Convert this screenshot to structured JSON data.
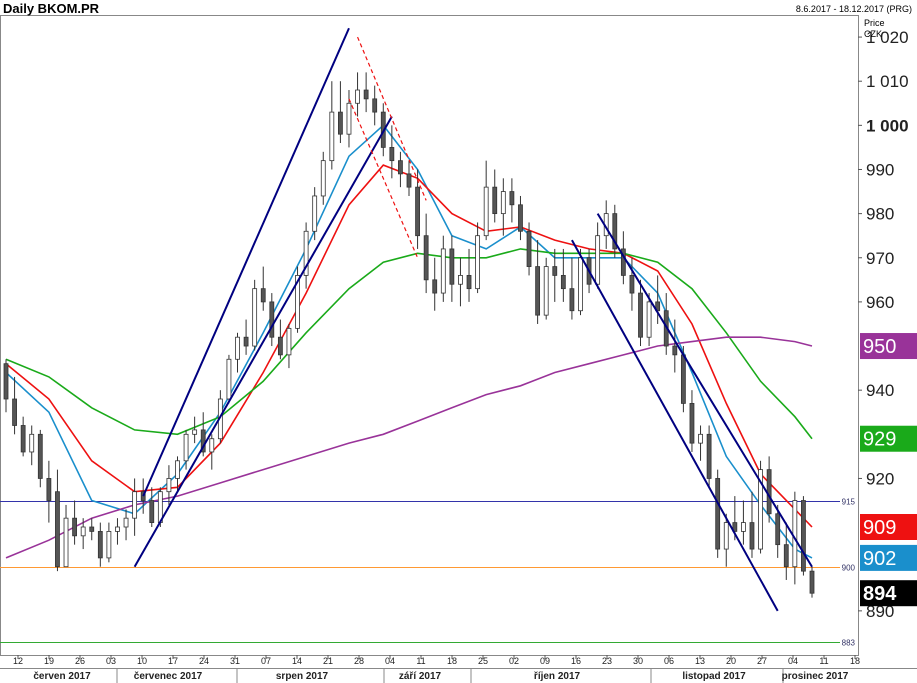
{
  "header": {
    "title": "Daily BKOM.PR",
    "range": "8.6.2017 - 18.12.2017 (PRG)",
    "price_label": "Price",
    "currency_label": "CZK"
  },
  "chart_data": {
    "type": "candlestick",
    "ylim": [
      880,
      1025
    ],
    "y_ticks": [
      {
        "value": 1020,
        "label": "1 020",
        "bold": false
      },
      {
        "value": 1010,
        "label": "1 010",
        "bold": false
      },
      {
        "value": 1000,
        "label": "1 000",
        "bold": true
      },
      {
        "value": 990,
        "label": "990",
        "bold": false
      },
      {
        "value": 980,
        "label": "980",
        "bold": false
      },
      {
        "value": 970,
        "label": "970",
        "bold": false
      },
      {
        "value": 960,
        "label": "960",
        "bold": false
      },
      {
        "value": 940,
        "label": "940",
        "bold": false
      },
      {
        "value": 920,
        "label": "920",
        "bold": false
      },
      {
        "value": 890,
        "label": "890",
        "bold": false
      }
    ],
    "x_ticks": [
      "12",
      "19",
      "26",
      "03",
      "10",
      "17",
      "24",
      "31",
      "07",
      "14",
      "21",
      "28",
      "04",
      "11",
      "18",
      "25",
      "02",
      "09",
      "16",
      "23",
      "30",
      "06",
      "13",
      "20",
      "27",
      "04",
      "11",
      "18"
    ],
    "months": [
      "červen 2017",
      "červenec 2017",
      "srpen 2017",
      "září 2017",
      "říjen 2017",
      "listopad 2017",
      "prosinec 2017"
    ],
    "horizontal_lines": [
      {
        "value": 915,
        "label": "915",
        "color": "#3333aa"
      },
      {
        "value": 900,
        "label": "900",
        "color": "#ff9933"
      },
      {
        "value": 883,
        "label": "883",
        "color": "#33aa33"
      }
    ],
    "price_tags": [
      {
        "value": 950,
        "label": "950",
        "color": "#993399"
      },
      {
        "value": 929,
        "label": "929",
        "color": "#1aaa1a"
      },
      {
        "value": 909,
        "label": "909",
        "color": "#ee1111"
      },
      {
        "value": 902,
        "label": "902",
        "color": "#1a8fcc"
      },
      {
        "value": 894,
        "label": "894",
        "color": "#000000"
      }
    ],
    "candles": [
      [
        0,
        946,
        947,
        935,
        938
      ],
      [
        1,
        938,
        943,
        930,
        932
      ],
      [
        2,
        932,
        934,
        925,
        926
      ],
      [
        3,
        926,
        932,
        923,
        930
      ],
      [
        4,
        930,
        931,
        918,
        920
      ],
      [
        5,
        920,
        924,
        910,
        915
      ],
      [
        6,
        917,
        922,
        899,
        900
      ],
      [
        7,
        900,
        914,
        900,
        911
      ],
      [
        8,
        911,
        915,
        905,
        907
      ],
      [
        9,
        907,
        911,
        904,
        909
      ],
      [
        10,
        909,
        911,
        906,
        908
      ],
      [
        11,
        908,
        910,
        900,
        902
      ],
      [
        12,
        902,
        910,
        901,
        908
      ],
      [
        13,
        908,
        911,
        905,
        909
      ],
      [
        14,
        909,
        913,
        906,
        911
      ],
      [
        15,
        911,
        920,
        907,
        917
      ],
      [
        16,
        917,
        920,
        912,
        915
      ],
      [
        17,
        915,
        918,
        909,
        910
      ],
      [
        18,
        910,
        918,
        909,
        917
      ],
      [
        19,
        917,
        923,
        914,
        920
      ],
      [
        20,
        920,
        925,
        917,
        924
      ],
      [
        21,
        924,
        931,
        922,
        930
      ],
      [
        22,
        930,
        934,
        928,
        931
      ],
      [
        23,
        931,
        935,
        925,
        926
      ],
      [
        24,
        926,
        930,
        922,
        929
      ],
      [
        25,
        929,
        940,
        928,
        938
      ],
      [
        26,
        938,
        948,
        937,
        947
      ],
      [
        27,
        947,
        953,
        944,
        952
      ],
      [
        28,
        952,
        956,
        948,
        950
      ],
      [
        29,
        950,
        965,
        949,
        963
      ],
      [
        30,
        963,
        968,
        958,
        960
      ],
      [
        31,
        960,
        962,
        950,
        952
      ],
      [
        32,
        952,
        956,
        947,
        948
      ],
      [
        33,
        948,
        955,
        945,
        954
      ],
      [
        34,
        954,
        968,
        953,
        966
      ],
      [
        35,
        966,
        978,
        963,
        976
      ],
      [
        36,
        976,
        986,
        974,
        984
      ],
      [
        37,
        984,
        994,
        982,
        992
      ],
      [
        38,
        992,
        1010,
        990,
        1003
      ],
      [
        39,
        1003,
        1010,
        996,
        998
      ],
      [
        40,
        998,
        1008,
        995,
        1005
      ],
      [
        41,
        1005,
        1012,
        1002,
        1008
      ],
      [
        42,
        1008,
        1012,
        1003,
        1006
      ],
      [
        43,
        1006,
        1009,
        1000,
        1003
      ],
      [
        44,
        1003,
        1005,
        993,
        995
      ],
      [
        45,
        995,
        1000,
        988,
        992
      ],
      [
        46,
        992,
        994,
        986,
        989
      ],
      [
        47,
        989,
        992,
        984,
        986
      ],
      [
        48,
        986,
        990,
        972,
        975
      ],
      [
        49,
        975,
        980,
        962,
        965
      ],
      [
        50,
        965,
        970,
        958,
        962
      ],
      [
        51,
        962,
        975,
        960,
        972
      ],
      [
        52,
        972,
        975,
        960,
        964
      ],
      [
        53,
        964,
        970,
        959,
        966
      ],
      [
        54,
        966,
        972,
        960,
        963
      ],
      [
        55,
        963,
        978,
        962,
        975
      ],
      [
        56,
        975,
        992,
        974,
        986
      ],
      [
        57,
        986,
        990,
        978,
        980
      ],
      [
        58,
        980,
        988,
        975,
        985
      ],
      [
        59,
        985,
        988,
        978,
        982
      ],
      [
        60,
        982,
        984,
        974,
        976
      ],
      [
        61,
        976,
        978,
        966,
        968
      ],
      [
        62,
        968,
        974,
        955,
        957
      ],
      [
        63,
        957,
        970,
        956,
        968
      ],
      [
        64,
        968,
        972,
        960,
        966
      ],
      [
        65,
        966,
        972,
        960,
        963
      ],
      [
        66,
        963,
        970,
        956,
        958
      ],
      [
        67,
        958,
        972,
        957,
        970
      ],
      [
        68,
        970,
        972,
        962,
        964
      ],
      [
        69,
        964,
        978,
        963,
        975
      ],
      [
        70,
        975,
        983,
        972,
        980
      ],
      [
        71,
        980,
        982,
        970,
        972
      ],
      [
        72,
        972,
        976,
        964,
        966
      ],
      [
        73,
        966,
        970,
        958,
        962
      ],
      [
        74,
        962,
        965,
        950,
        952
      ],
      [
        75,
        952,
        962,
        950,
        960
      ],
      [
        76,
        960,
        966,
        955,
        958
      ],
      [
        77,
        958,
        962,
        948,
        950
      ],
      [
        78,
        950,
        956,
        944,
        948
      ],
      [
        79,
        948,
        950,
        935,
        937
      ],
      [
        80,
        937,
        940,
        926,
        928
      ],
      [
        81,
        928,
        932,
        924,
        930
      ],
      [
        82,
        930,
        932,
        918,
        920
      ],
      [
        83,
        920,
        922,
        902,
        904
      ],
      [
        84,
        904,
        912,
        900,
        910
      ],
      [
        85,
        910,
        916,
        906,
        908
      ],
      [
        86,
        908,
        915,
        905,
        910
      ],
      [
        87,
        910,
        917,
        902,
        904
      ],
      [
        88,
        904,
        924,
        903,
        922
      ],
      [
        89,
        922,
        925,
        910,
        912
      ],
      [
        90,
        912,
        914,
        902,
        905
      ],
      [
        91,
        905,
        910,
        897,
        900
      ],
      [
        92,
        900,
        917,
        896,
        915
      ],
      [
        93,
        915,
        916,
        898,
        899
      ],
      [
        94,
        899,
        900,
        893,
        894
      ]
    ],
    "series": [
      {
        "name": "",
        "color": "#1a8fcc",
        "values": [
          [
            0,
            944
          ],
          [
            5,
            935
          ],
          [
            10,
            915
          ],
          [
            15,
            912
          ],
          [
            20,
            921
          ],
          [
            25,
            935
          ],
          [
            30,
            953
          ],
          [
            35,
            972
          ],
          [
            40,
            993
          ],
          [
            44,
            1000
          ],
          [
            48,
            990
          ],
          [
            52,
            975
          ],
          [
            56,
            972
          ],
          [
            60,
            977
          ],
          [
            64,
            970
          ],
          [
            68,
            970
          ],
          [
            72,
            970
          ],
          [
            76,
            962
          ],
          [
            80,
            944
          ],
          [
            84,
            925
          ],
          [
            88,
            914
          ],
          [
            92,
            904
          ],
          [
            94,
            902
          ]
        ]
      },
      {
        "name": "",
        "color": "#ee1111",
        "values": [
          [
            0,
            946
          ],
          [
            5,
            938
          ],
          [
            10,
            924
          ],
          [
            15,
            917
          ],
          [
            20,
            918
          ],
          [
            25,
            928
          ],
          [
            30,
            944
          ],
          [
            35,
            962
          ],
          [
            40,
            982
          ],
          [
            44,
            991
          ],
          [
            48,
            988
          ],
          [
            52,
            980
          ],
          [
            56,
            976
          ],
          [
            60,
            977
          ],
          [
            64,
            974
          ],
          [
            68,
            972
          ],
          [
            72,
            971
          ],
          [
            76,
            967
          ],
          [
            80,
            955
          ],
          [
            84,
            937
          ],
          [
            88,
            921
          ],
          [
            92,
            913
          ],
          [
            94,
            909
          ]
        ]
      },
      {
        "name": "",
        "color": "#1aaa1a",
        "values": [
          [
            0,
            947
          ],
          [
            5,
            943
          ],
          [
            10,
            936
          ],
          [
            15,
            931
          ],
          [
            20,
            930
          ],
          [
            25,
            934
          ],
          [
            30,
            942
          ],
          [
            35,
            953
          ],
          [
            40,
            963
          ],
          [
            44,
            969
          ],
          [
            48,
            971
          ],
          [
            52,
            970
          ],
          [
            56,
            970
          ],
          [
            60,
            972
          ],
          [
            64,
            971
          ],
          [
            68,
            971
          ],
          [
            72,
            971
          ],
          [
            76,
            969
          ],
          [
            80,
            963
          ],
          [
            84,
            953
          ],
          [
            88,
            942
          ],
          [
            92,
            934
          ],
          [
            94,
            929
          ]
        ]
      },
      {
        "name": "",
        "color": "#993399",
        "values": [
          [
            0,
            902
          ],
          [
            5,
            906
          ],
          [
            10,
            911
          ],
          [
            15,
            914
          ],
          [
            20,
            916
          ],
          [
            25,
            919
          ],
          [
            30,
            922
          ],
          [
            35,
            925
          ],
          [
            40,
            928
          ],
          [
            44,
            930
          ],
          [
            48,
            933
          ],
          [
            52,
            936
          ],
          [
            56,
            939
          ],
          [
            60,
            941
          ],
          [
            64,
            944
          ],
          [
            68,
            946
          ],
          [
            72,
            948
          ],
          [
            76,
            950
          ],
          [
            80,
            951
          ],
          [
            84,
            952
          ],
          [
            88,
            952
          ],
          [
            92,
            951
          ],
          [
            94,
            950
          ]
        ]
      }
    ],
    "trendlines": [
      {
        "from": [
          16,
          916
        ],
        "to": [
          40,
          1022
        ],
        "color": "#000080",
        "dashed": false
      },
      {
        "from": [
          15,
          900
        ],
        "to": [
          45,
          1002
        ],
        "color": "#000080",
        "dashed": false
      },
      {
        "from": [
          41,
          1020
        ],
        "to": [
          49,
          983
        ],
        "color": "#ee1111",
        "dashed": true
      },
      {
        "from": [
          40,
          1006
        ],
        "to": [
          48,
          970
        ],
        "color": "#ee1111",
        "dashed": true
      },
      {
        "from": [
          69,
          980
        ],
        "to": [
          94,
          900
        ],
        "color": "#000080",
        "dashed": false
      },
      {
        "from": [
          66,
          974
        ],
        "to": [
          90,
          890
        ],
        "color": "#000080",
        "dashed": false
      }
    ]
  }
}
